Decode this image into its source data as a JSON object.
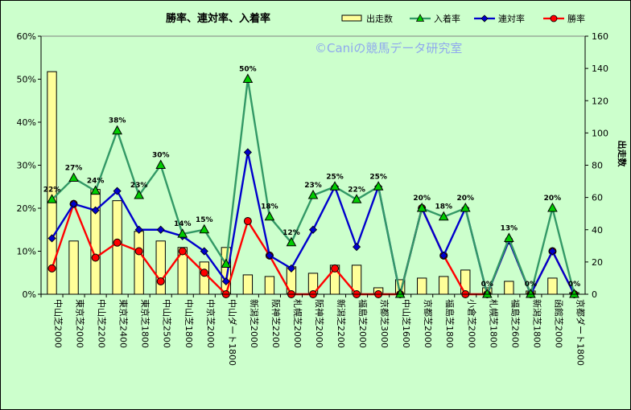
{
  "chart_data": {
    "type": "bar",
    "title": "勝率、連対率、入着率",
    "watermark": "©Caniの競馬データ研究室",
    "categories": [
      "中山芝2000",
      "東京芝2000",
      "中山芝2200",
      "東京芝2400",
      "東京芝1800",
      "中山芝2500",
      "中山芝1800",
      "中京芝2000",
      "中山ダート1800",
      "新潟芝2000",
      "阪神芝2200",
      "札幌芝2000",
      "阪神芝2000",
      "新潟芝2200",
      "福島芝2000",
      "京都芝3000",
      "中山芝1600",
      "京都芝2000",
      "福島芝1800",
      "小倉芝2000",
      "札幌芝1800",
      "福島芝2600",
      "新潟芝1800",
      "函館芝2000",
      "京都ダート1800"
    ],
    "y_left": {
      "ylim": [
        0,
        60
      ],
      "ticks": [
        "0%",
        "10%",
        "20%",
        "30%",
        "40%",
        "50%",
        "60%"
      ]
    },
    "y_right": {
      "label": "出走数",
      "ylim": [
        0,
        160
      ],
      "ticks": [
        "0",
        "20",
        "40",
        "60",
        "80",
        "100",
        "120",
        "140",
        "160"
      ]
    },
    "grid": false,
    "legend_position": "top-right",
    "series": [
      {
        "name": "出走数",
        "kind": "bar",
        "axis": "right",
        "color": "#ffff99",
        "values": [
          138,
          33,
          65,
          58,
          39,
          33,
          29,
          20,
          29,
          12,
          11,
          17,
          13,
          18,
          18,
          4,
          9,
          10,
          11,
          15,
          4,
          8,
          2,
          10,
          1
        ]
      },
      {
        "name": "入着率",
        "kind": "line",
        "axis": "left",
        "color": "#339966",
        "marker": "triangle",
        "values": [
          22,
          27,
          24,
          38,
          23,
          30,
          14,
          15,
          7,
          50,
          18,
          12,
          23,
          25,
          22,
          25,
          0,
          20,
          18,
          20,
          0,
          13,
          0,
          20,
          0
        ]
      },
      {
        "name": "連対率",
        "kind": "line",
        "axis": "left",
        "color": "#0000cc",
        "marker": "diamond",
        "values": [
          13,
          21,
          19.5,
          24,
          15,
          15,
          13.5,
          10,
          3,
          33,
          9,
          6,
          15,
          25,
          11,
          25,
          0,
          20,
          9,
          20,
          0,
          12.5,
          0,
          10,
          0
        ]
      },
      {
        "name": "勝率",
        "kind": "line",
        "axis": "left",
        "color": "#ff0000",
        "marker": "circle",
        "values": [
          6,
          21,
          8.5,
          12,
          10,
          3,
          10,
          5,
          0,
          17,
          9,
          0,
          0,
          6,
          0,
          0,
          0,
          20,
          9,
          0,
          0,
          12.5,
          0,
          10,
          0
        ]
      }
    ],
    "data_labels": [
      "22%",
      "27%",
      "24%",
      "38%",
      "23%",
      "30%",
      "14%",
      "15%",
      "",
      "50%",
      "18%",
      "12%",
      "23%",
      "25%",
      "22%",
      "25%",
      "",
      "20%",
      "18%",
      "20%",
      "0%",
      "13%",
      "0%",
      "20%",
      "0%"
    ]
  }
}
